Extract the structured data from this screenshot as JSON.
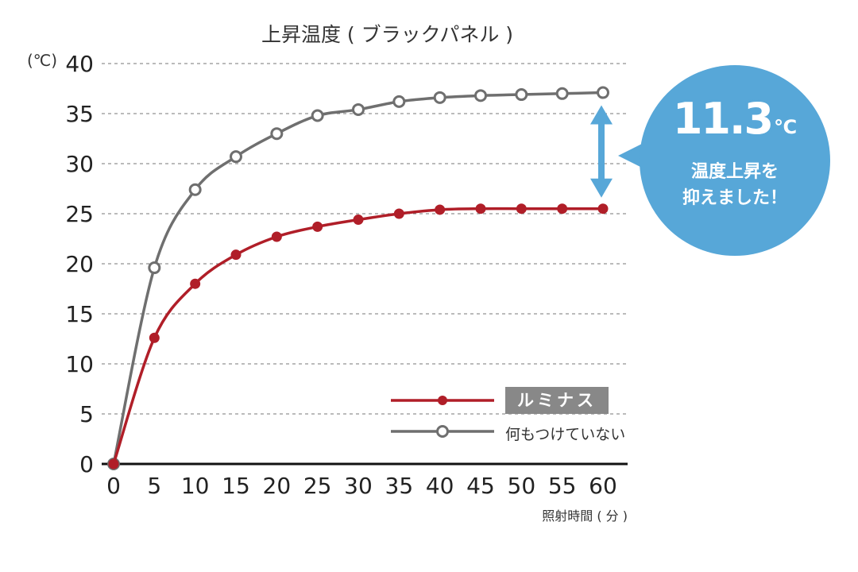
{
  "chart_data": {
    "type": "line",
    "title": "上昇温度 ( ブラックパネル )",
    "ylabel": "(℃)",
    "xlabel": "照射時間 ( 分 )",
    "x": [
      0,
      5,
      10,
      15,
      20,
      25,
      30,
      35,
      40,
      45,
      50,
      55,
      60
    ],
    "ylim": [
      0,
      40
    ],
    "xlim": [
      0,
      60
    ],
    "yticks": [
      0,
      5,
      10,
      15,
      20,
      25,
      30,
      35,
      40
    ],
    "xticks": [
      0,
      5,
      10,
      15,
      20,
      25,
      30,
      35,
      40,
      45,
      50,
      55,
      60
    ],
    "grid": "horizontal dashed",
    "series": [
      {
        "name": "ルミナス",
        "color": "#b01e28",
        "marker": "filled-circle",
        "values": [
          0,
          12.6,
          18,
          20.9,
          22.7,
          23.7,
          24.4,
          25,
          25.4,
          25.5,
          25.5,
          25.5,
          25.5
        ]
      },
      {
        "name": "何もつけていない",
        "color": "#6f6f6f",
        "marker": "open-circle",
        "values": [
          0,
          19.6,
          27.4,
          30.7,
          33,
          34.8,
          35.4,
          36.2,
          36.6,
          36.8,
          36.9,
          37,
          37.1
        ]
      }
    ],
    "annotation": {
      "value": "11.3",
      "unit": "℃",
      "message_lines": [
        "温度上昇を",
        "抑えました！"
      ],
      "color": "#57a7d8"
    }
  }
}
